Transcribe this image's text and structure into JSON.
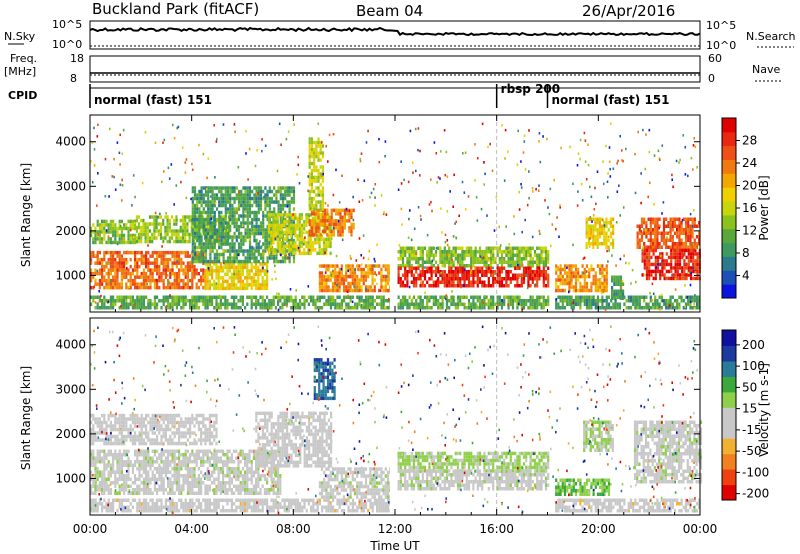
{
  "header": {
    "station": "Buckland Park (fitACF)",
    "beam": "Beam 04",
    "date": "26/Apr/2016"
  },
  "summary": {
    "nsky_label": "N.Sky",
    "nsearch_label": "N.Search",
    "freq_label": "Freq.",
    "freq_unit": "[MHz]",
    "nave_label": "Nave",
    "cpid_label": "CPID",
    "nsky_ticks": [
      "10^5",
      "10^0"
    ],
    "nsearch_ticks": [
      "10^5",
      "10^0"
    ],
    "freq_ticks": [
      "18",
      "8"
    ],
    "nave_ticks": [
      "60",
      "0"
    ],
    "cpid_segments": [
      {
        "label": "normal (fast) 151",
        "start_hour": 0.0
      },
      {
        "label": "rbsp 200",
        "start_hour": 16.0
      },
      {
        "label": "normal (fast) 151",
        "start_hour": 18.0
      }
    ]
  },
  "chart_data": [
    {
      "type": "heatmap",
      "panel": "power",
      "ylabel": "Slant Range [km]",
      "xlabel": "",
      "x_ticks": [
        "00:00",
        "04:00",
        "08:00",
        "12:00",
        "16:00",
        "20:00",
        "00:00"
      ],
      "xlim_hours": [
        0,
        24
      ],
      "y_ticks": [
        1000,
        2000,
        3000,
        4000
      ],
      "ylim": [
        180,
        4600
      ],
      "colorbar": {
        "label": "Power [dB]",
        "ticks": [
          "4",
          "8",
          "12",
          "16",
          "20",
          "24",
          "28"
        ],
        "range": [
          0,
          30
        ],
        "colors": [
          "#0a14e0",
          "#1d4fb8",
          "#2d7a8f",
          "#3e9a5e",
          "#5aa83c",
          "#8cc21e",
          "#c8d50a",
          "#f0d000",
          "#f2a800",
          "#f07a10",
          "#ee5018",
          "#e82810",
          "#e00000"
        ]
      },
      "bands": [
        {
          "x0": 0.0,
          "x1": 1.8,
          "r0": 1750,
          "r1": 2250,
          "value": 12
        },
        {
          "x0": 1.8,
          "x1": 5.5,
          "r0": 1750,
          "r1": 2350,
          "value": 13
        },
        {
          "x0": 0.0,
          "x1": 4.5,
          "r0": 700,
          "r1": 1550,
          "value": 23
        },
        {
          "x0": 4.5,
          "x1": 7.0,
          "r0": 750,
          "r1": 1300,
          "value": 17
        },
        {
          "x0": 4.0,
          "x1": 8.0,
          "r0": 1300,
          "r1": 3000,
          "value": 9
        },
        {
          "x0": 7.0,
          "x1": 9.5,
          "r0": 1500,
          "r1": 2400,
          "value": 15
        },
        {
          "x0": 8.6,
          "x1": 10.4,
          "r0": 1900,
          "r1": 2500,
          "value": 22
        },
        {
          "x0": 8.6,
          "x1": 9.2,
          "r0": 2500,
          "r1": 4100,
          "value": 15
        },
        {
          "x0": 9.0,
          "x1": 11.8,
          "r0": 650,
          "r1": 1250,
          "value": 21
        },
        {
          "x0": 0.0,
          "x1": 11.8,
          "r0": 250,
          "r1": 550,
          "value": 10
        },
        {
          "x0": 12.1,
          "x1": 18.0,
          "r0": 1200,
          "r1": 1650,
          "value": 12
        },
        {
          "x0": 12.1,
          "x1": 18.0,
          "r0": 750,
          "r1": 1200,
          "value": 27
        },
        {
          "x0": 12.1,
          "x1": 18.0,
          "r0": 250,
          "r1": 550,
          "value": 10
        },
        {
          "x0": 18.3,
          "x1": 20.3,
          "r0": 700,
          "r1": 1250,
          "value": 21
        },
        {
          "x0": 19.5,
          "x1": 20.6,
          "r0": 1600,
          "r1": 2300,
          "value": 17
        },
        {
          "x0": 20.5,
          "x1": 21.0,
          "r0": 500,
          "r1": 1000,
          "value": 8
        },
        {
          "x0": 21.5,
          "x1": 24.0,
          "r0": 1600,
          "r1": 2300,
          "value": 24
        },
        {
          "x0": 21.7,
          "x1": 24.0,
          "r0": 900,
          "r1": 1600,
          "value": 27
        },
        {
          "x0": 18.3,
          "x1": 24.0,
          "r0": 250,
          "r1": 550,
          "value": 9
        }
      ]
    },
    {
      "type": "heatmap",
      "panel": "velocity",
      "ylabel": "Slant Range [km]",
      "xlabel": "Time UT",
      "x_ticks": [
        "00:00",
        "04:00",
        "08:00",
        "12:00",
        "16:00",
        "20:00",
        "00:00"
      ],
      "xlim_hours": [
        0,
        24
      ],
      "y_ticks": [
        1000,
        2000,
        3000,
        4000
      ],
      "ylim": [
        180,
        4600
      ],
      "colorbar": {
        "label": "Velocity [m s-1]",
        "ticks": [
          "200",
          "100",
          "50",
          "15",
          "-15",
          "-50",
          "-100",
          "-200"
        ],
        "range": [
          -250,
          250
        ],
        "colors": [
          "#e00000",
          "#f04010",
          "#f08020",
          "#f2b030",
          "#c8c8c8",
          "#c8c8c8",
          "#8ed04a",
          "#3aa83a",
          "#2a7a9a",
          "#1a3aa0",
          "#1010a0"
        ]
      },
      "bands": [
        {
          "x0": 0.0,
          "x1": 5.0,
          "r0": 1750,
          "r1": 2450,
          "value": -20
        },
        {
          "x0": 0.0,
          "x1": 7.5,
          "r0": 700,
          "r1": 1650,
          "value": 0
        },
        {
          "x0": 6.5,
          "x1": 9.5,
          "r0": 1300,
          "r1": 2500,
          "value": -30
        },
        {
          "x0": 8.8,
          "x1": 9.6,
          "r0": 2800,
          "r1": 3700,
          "value": 150
        },
        {
          "x0": 9.0,
          "x1": 11.8,
          "r0": 600,
          "r1": 1250,
          "value": 0
        },
        {
          "x0": 0.0,
          "x1": 11.8,
          "r0": 250,
          "r1": 550,
          "value": -40
        },
        {
          "x0": 12.1,
          "x1": 18.0,
          "r0": 1200,
          "r1": 1600,
          "value": 35
        },
        {
          "x0": 12.1,
          "x1": 18.0,
          "r0": 750,
          "r1": 1200,
          "value": 0
        },
        {
          "x0": 18.3,
          "x1": 20.4,
          "r0": 650,
          "r1": 1000,
          "value": 60
        },
        {
          "x0": 19.4,
          "x1": 20.6,
          "r0": 1600,
          "r1": 2300,
          "value": 25
        },
        {
          "x0": 21.4,
          "x1": 24.0,
          "r0": 900,
          "r1": 2300,
          "value": 0
        },
        {
          "x0": 18.3,
          "x1": 24.0,
          "r0": 250,
          "r1": 550,
          "value": -40
        }
      ]
    }
  ]
}
